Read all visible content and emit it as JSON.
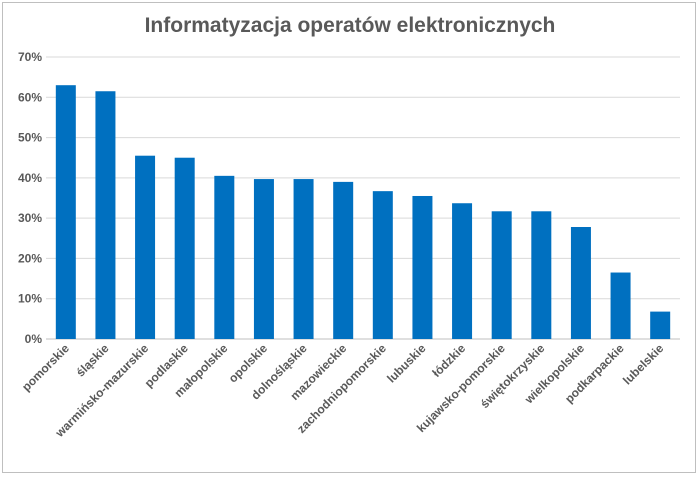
{
  "chart_data": {
    "type": "bar",
    "title": "Informatyzacja operatów elektronicznych",
    "xlabel": "",
    "ylabel": "",
    "ylim": [
      0,
      70
    ],
    "yticks": [
      0,
      10,
      20,
      30,
      40,
      50,
      60,
      70
    ],
    "ytick_labels": [
      "0%",
      "10%",
      "20%",
      "30%",
      "40%",
      "50%",
      "60%",
      "70%"
    ],
    "grid": true,
    "legend": "none",
    "bar_color": "#0070C0",
    "categories": [
      "pomorskie",
      "śląskie",
      "warmińsko-mazurskie",
      "podlaskie",
      "małopolskie",
      "opolskie",
      "dolnośląskie",
      "mazowieckie",
      "zachodniopomorskie",
      "lubuskie",
      "łódzkie",
      "kujawsko-pomorskie",
      "świętokrzyskie",
      "wielkopolskie",
      "podkarpackie",
      "lubelskie"
    ],
    "values": [
      63,
      61.5,
      45.5,
      45,
      40.5,
      39.7,
      39.7,
      39,
      36.7,
      35.5,
      33.7,
      31.7,
      31.7,
      27.8,
      16.5,
      6.8
    ]
  }
}
